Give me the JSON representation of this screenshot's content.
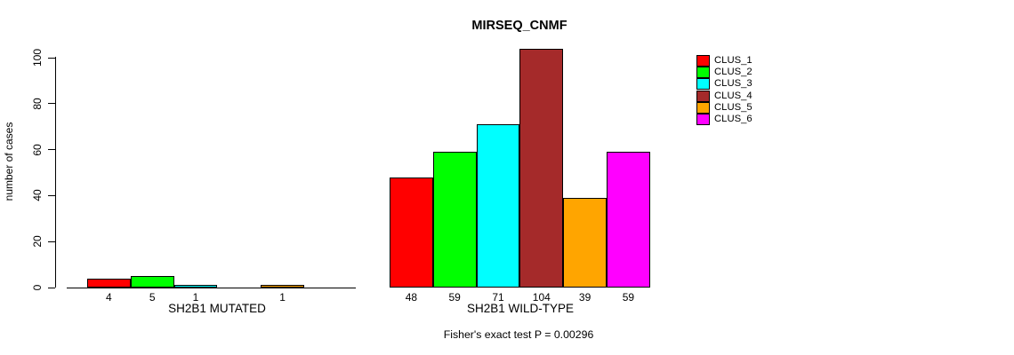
{
  "chart_data": {
    "type": "bar",
    "title": "MIRSEQ_CNMF",
    "ylabel": "number of cases",
    "xlabel": "",
    "categories": [
      "SH2B1 MUTATED",
      "SH2B1 WILD-TYPE"
    ],
    "series": [
      {
        "name": "CLUS_1",
        "color": "#FF0000",
        "values": [
          4,
          48
        ]
      },
      {
        "name": "CLUS_2",
        "color": "#00FF00",
        "values": [
          5,
          59
        ]
      },
      {
        "name": "CLUS_3",
        "color": "#00FFFF",
        "values": [
          1,
          71
        ]
      },
      {
        "name": "CLUS_4",
        "color": "#A52A2A",
        "values": [
          0,
          104
        ]
      },
      {
        "name": "CLUS_5",
        "color": "#FFA500",
        "values": [
          1,
          39
        ]
      },
      {
        "name": "CLUS_6",
        "color": "#FF00FF",
        "values": [
          0,
          59
        ]
      }
    ],
    "yticks": [
      0,
      20,
      40,
      60,
      80,
      100
    ],
    "ylim": [
      0,
      104
    ],
    "grid": false,
    "legend_position": "top-right",
    "bar_value_labels": {
      "SH2B1 MUTATED": [
        "4",
        "5",
        "1",
        "",
        "1",
        ""
      ],
      "SH2B1 WILD-TYPE": [
        "48",
        "59",
        "71",
        "104",
        "39",
        "59"
      ]
    },
    "annotation": "Fisher's exact test P = 0.00296"
  }
}
